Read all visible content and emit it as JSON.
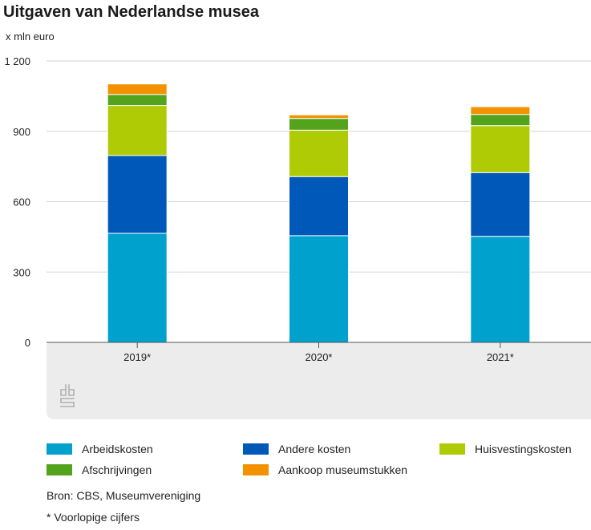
{
  "header": {
    "title": "Uitgaven van Nederlandse musea",
    "unit": "x mln euro"
  },
  "chart_data": {
    "type": "bar",
    "stacked": true,
    "title": "Uitgaven van Nederlandse musea",
    "ylabel": "x mln euro",
    "ylim": [
      0,
      1200
    ],
    "yticks": [
      0,
      300,
      600,
      900,
      1200
    ],
    "ytick_labels": [
      "0",
      "300",
      "600",
      "900",
      "1 200"
    ],
    "categories": [
      "2019*",
      "2020*",
      "2021*"
    ],
    "series": [
      {
        "name": "Arbeidskosten",
        "color": "#00a1cd",
        "values": [
          465,
          455,
          452
        ]
      },
      {
        "name": "Andere kosten",
        "color": "#0058b8",
        "values": [
          332,
          252,
          272
        ]
      },
      {
        "name": "Huisvestingskosten",
        "color": "#afcb05",
        "values": [
          213,
          198,
          200
        ]
      },
      {
        "name": "Afschrijvingen",
        "color": "#53a31d",
        "values": [
          47,
          50,
          48
        ]
      },
      {
        "name": "Aankoop museumstukken",
        "color": "#f39200",
        "values": [
          45,
          15,
          33
        ]
      }
    ],
    "grid": true,
    "legend_position": "bottom"
  },
  "legend": {
    "items": [
      {
        "label": "Arbeidskosten",
        "color": "#00a1cd"
      },
      {
        "label": "Andere kosten",
        "color": "#0058b8"
      },
      {
        "label": "Huisvestingskosten",
        "color": "#afcb05"
      },
      {
        "label": "Afschrijvingen",
        "color": "#53a31d"
      },
      {
        "label": "Aankoop museumstukken",
        "color": "#f39200"
      }
    ]
  },
  "footer": {
    "source": "Bron: CBS, Museumvereniging",
    "note": "* Voorlopige cijfers"
  },
  "logo": {
    "icon": "cbs-logo-icon"
  }
}
